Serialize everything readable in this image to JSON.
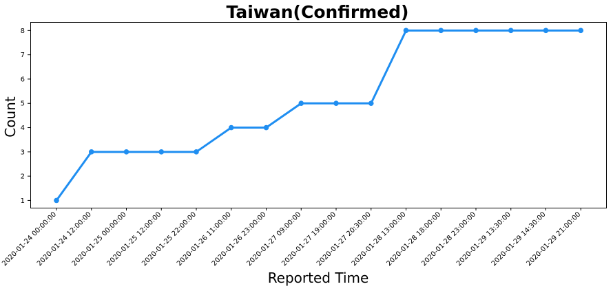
{
  "chart_data": {
    "type": "line",
    "title": "Taiwan(Confirmed)",
    "xlabel": "Reported Time",
    "ylabel": "Count",
    "categories": [
      "2020-01-24 00:00:00",
      "2020-01-24 12:00:00",
      "2020-01-25 00:00:00",
      "2020-01-25 12:00:00",
      "2020-01-25 22:00:00",
      "2020-01-26 11:00:00",
      "2020-01-26 23:00:00",
      "2020-01-27 09:00:00",
      "2020-01-27 19:00:00",
      "2020-01-27 20:30:00",
      "2020-01-28 13:00:00",
      "2020-01-28 18:00:00",
      "2020-01-28 23:00:00",
      "2020-01-29 13:30:00",
      "2020-01-29 14:30:00",
      "2020-01-29 21:00:00"
    ],
    "series": [
      {
        "values": [
          1,
          3,
          3,
          3,
          3,
          4,
          4,
          5,
          5,
          5,
          8,
          8,
          8,
          8,
          8,
          8
        ],
        "color": "#1f8ef1"
      }
    ],
    "yticks": [
      1,
      2,
      3,
      4,
      5,
      6,
      7,
      8
    ],
    "ylim": [
      0.7,
      8.35
    ],
    "grid": false,
    "legend": "none"
  }
}
